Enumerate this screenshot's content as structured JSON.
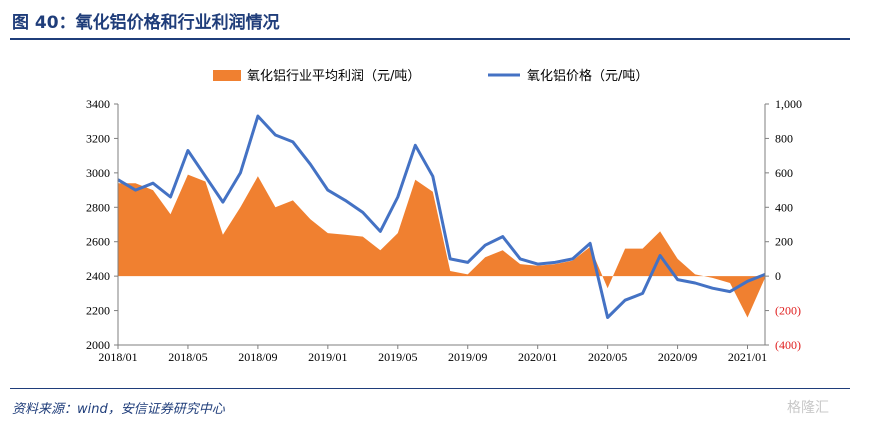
{
  "figure": {
    "title": "图 40：氧化铝价格和行业利润情况",
    "source": "资料来源：wind，安信证券研究中心",
    "watermark": "格隆汇"
  },
  "chart_data": {
    "type": "bar+line",
    "title": "",
    "xlabel": "",
    "ylabel_left": "",
    "ylabel_right": "",
    "x_ticks": [
      "2018/01",
      "2018/05",
      "2018/09",
      "2019/01",
      "2019/05",
      "2019/09",
      "2020/01",
      "2020/05",
      "2020/09",
      "2021/01"
    ],
    "y_left": {
      "min": 2000,
      "max": 3400,
      "ticks": [
        "3400",
        "3200",
        "3000",
        "2800",
        "2600",
        "2400",
        "2200",
        "2000"
      ]
    },
    "y_right": {
      "min": -400,
      "max": 1000,
      "ticks": [
        "1,000",
        "800",
        "600",
        "400",
        "200",
        "0",
        "(200)",
        "(400)"
      ]
    },
    "legend": {
      "position": "top"
    },
    "colors": {
      "profit": "#f08030",
      "price": "#4472c4",
      "negative_tick": "#e02020"
    },
    "series": [
      {
        "name": "氧化铝行业平均利润（元/吨）",
        "kind": "area",
        "axis": "right",
        "points": [
          [
            "2018/01",
            540
          ],
          [
            "2018/02",
            540
          ],
          [
            "2018/03",
            500
          ],
          [
            "2018/04",
            360
          ],
          [
            "2018/05",
            590
          ],
          [
            "2018/06",
            550
          ],
          [
            "2018/07",
            240
          ],
          [
            "2018/08",
            400
          ],
          [
            "2018/09",
            580
          ],
          [
            "2018/10",
            400
          ],
          [
            "2018/11",
            440
          ],
          [
            "2018/12",
            330
          ],
          [
            "2019/01",
            250
          ],
          [
            "2019/02",
            240
          ],
          [
            "2019/03",
            230
          ],
          [
            "2019/04",
            150
          ],
          [
            "2019/05",
            250
          ],
          [
            "2019/06",
            560
          ],
          [
            "2019/07",
            490
          ],
          [
            "2019/08",
            30
          ],
          [
            "2019/09",
            10
          ],
          [
            "2019/10",
            110
          ],
          [
            "2019/11",
            150
          ],
          [
            "2019/12",
            70
          ],
          [
            "2020/01",
            60
          ],
          [
            "2020/02",
            70
          ],
          [
            "2020/03",
            90
          ],
          [
            "2020/04",
            170
          ],
          [
            "2020/05",
            -70
          ],
          [
            "2020/06",
            160
          ],
          [
            "2020/07",
            160
          ],
          [
            "2020/08",
            260
          ],
          [
            "2020/09",
            100
          ],
          [
            "2020/10",
            10
          ],
          [
            "2020/11",
            -10
          ],
          [
            "2020/12",
            -40
          ],
          [
            "2021/01",
            -240
          ],
          [
            "2021/02",
            -10
          ]
        ]
      },
      {
        "name": "氧化铝价格（元/吨）",
        "kind": "line",
        "axis": "left",
        "points": [
          [
            "2018/01",
            2960
          ],
          [
            "2018/02",
            2900
          ],
          [
            "2018/03",
            2940
          ],
          [
            "2018/04",
            2860
          ],
          [
            "2018/05",
            3130
          ],
          [
            "2018/06",
            2980
          ],
          [
            "2018/07",
            2830
          ],
          [
            "2018/08",
            3000
          ],
          [
            "2018/09",
            3330
          ],
          [
            "2018/10",
            3220
          ],
          [
            "2018/11",
            3180
          ],
          [
            "2018/12",
            3050
          ],
          [
            "2019/01",
            2900
          ],
          [
            "2019/02",
            2840
          ],
          [
            "2019/03",
            2770
          ],
          [
            "2019/04",
            2660
          ],
          [
            "2019/05",
            2860
          ],
          [
            "2019/06",
            3160
          ],
          [
            "2019/07",
            2980
          ],
          [
            "2019/08",
            2500
          ],
          [
            "2019/09",
            2480
          ],
          [
            "2019/10",
            2580
          ],
          [
            "2019/11",
            2630
          ],
          [
            "2019/12",
            2500
          ],
          [
            "2020/01",
            2470
          ],
          [
            "2020/02",
            2480
          ],
          [
            "2020/03",
            2500
          ],
          [
            "2020/04",
            2590
          ],
          [
            "2020/05",
            2160
          ],
          [
            "2020/06",
            2260
          ],
          [
            "2020/07",
            2300
          ],
          [
            "2020/08",
            2520
          ],
          [
            "2020/09",
            2380
          ],
          [
            "2020/10",
            2360
          ],
          [
            "2020/11",
            2330
          ],
          [
            "2020/12",
            2310
          ],
          [
            "2021/01",
            2370
          ],
          [
            "2021/02",
            2410
          ]
        ]
      }
    ]
  }
}
